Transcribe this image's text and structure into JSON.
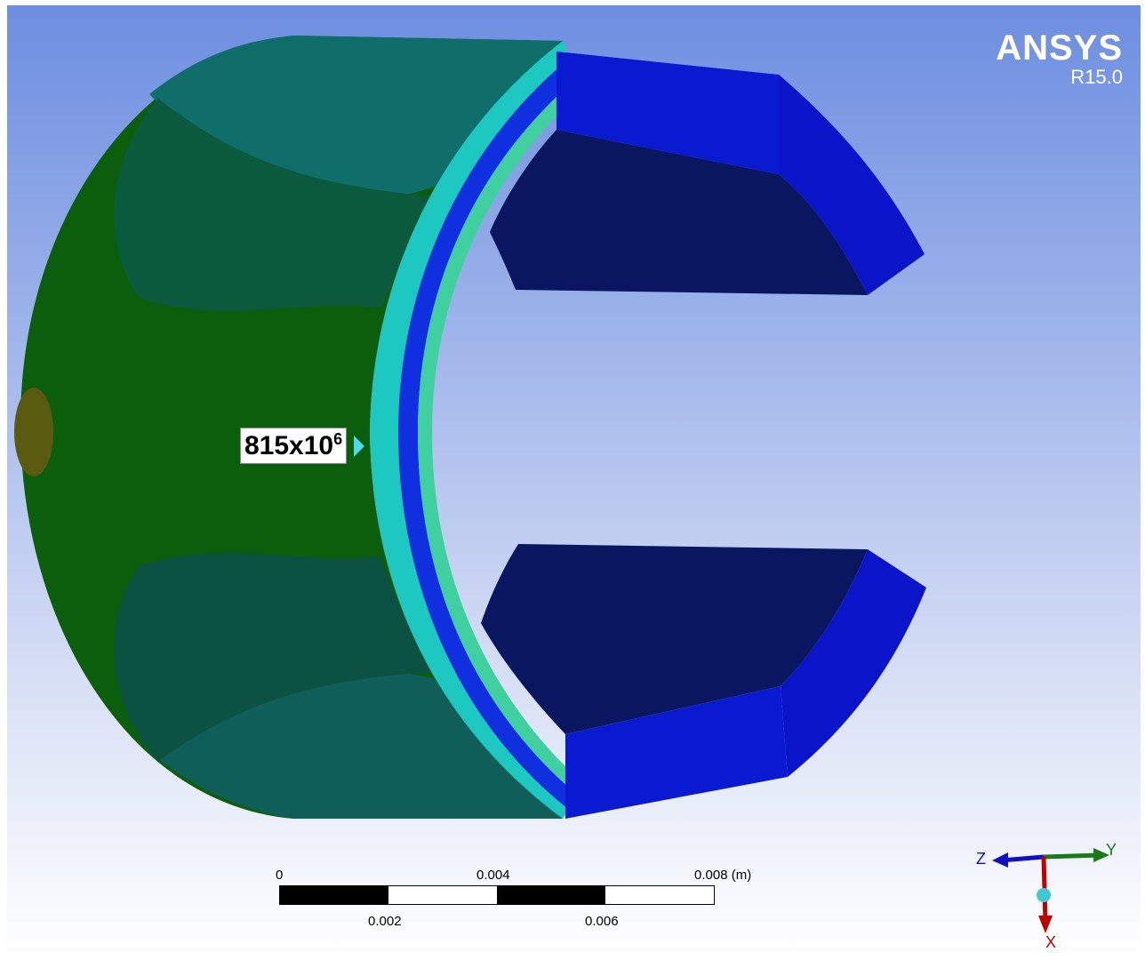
{
  "logo": {
    "brand": "ANSYS",
    "version": "R15.0"
  },
  "probe": {
    "value": "815x10",
    "exponent": "6"
  },
  "scale_bar": {
    "top_labels": [
      "0",
      "0.004",
      "0.008 (m)"
    ],
    "bottom_labels": [
      "0.002",
      "0.006"
    ]
  },
  "triad": {
    "x": "X",
    "y": "Y",
    "z": "Z",
    "x_color": "#c00000",
    "y_color": "#1a7a1a",
    "z_color": "#1010c0"
  },
  "colors": {
    "model_dark": "#0a1660",
    "model_blue": "#0a1ad0",
    "model_green": "#0b5e0b",
    "model_teal": "#0b5a55",
    "accent_cyan": "#4fd8ee"
  }
}
